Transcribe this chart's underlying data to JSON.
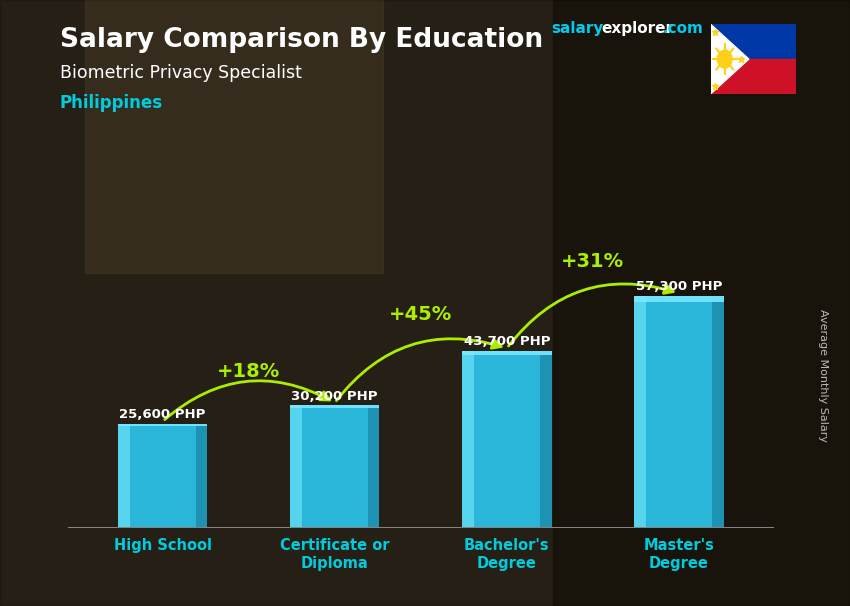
{
  "title": "Salary Comparison By Education",
  "subtitle": "Biometric Privacy Specialist",
  "country": "Philippines",
  "ylabel": "Average Monthly Salary",
  "categories": [
    "High School",
    "Certificate or\nDiploma",
    "Bachelor's\nDegree",
    "Master's\nDegree"
  ],
  "values": [
    25600,
    30200,
    43700,
    57300
  ],
  "value_labels": [
    "25,600 PHP",
    "30,200 PHP",
    "43,700 PHP",
    "57,300 PHP"
  ],
  "pct_labels": [
    "+18%",
    "+45%",
    "+31%"
  ],
  "bar_color_main": "#29b6d8",
  "bar_color_light": "#5dd8f0",
  "bar_color_dark": "#1a8aaa",
  "bar_color_top": "#7ae8ff",
  "pct_color": "#aaee00",
  "title_color": "#ffffff",
  "subtitle_color": "#ffffff",
  "country_color": "#00ccdd",
  "value_color": "#ffffff",
  "bg_color": "#4a4030",
  "brand_salary_color": "#00ccee",
  "brand_explorer_color": "#ffffff",
  "brand_com_color": "#00ccee",
  "xticklabel_color": "#00ccdd",
  "ylabel_color": "#cccccc",
  "ylim_max": 75000,
  "bar_width": 0.52
}
